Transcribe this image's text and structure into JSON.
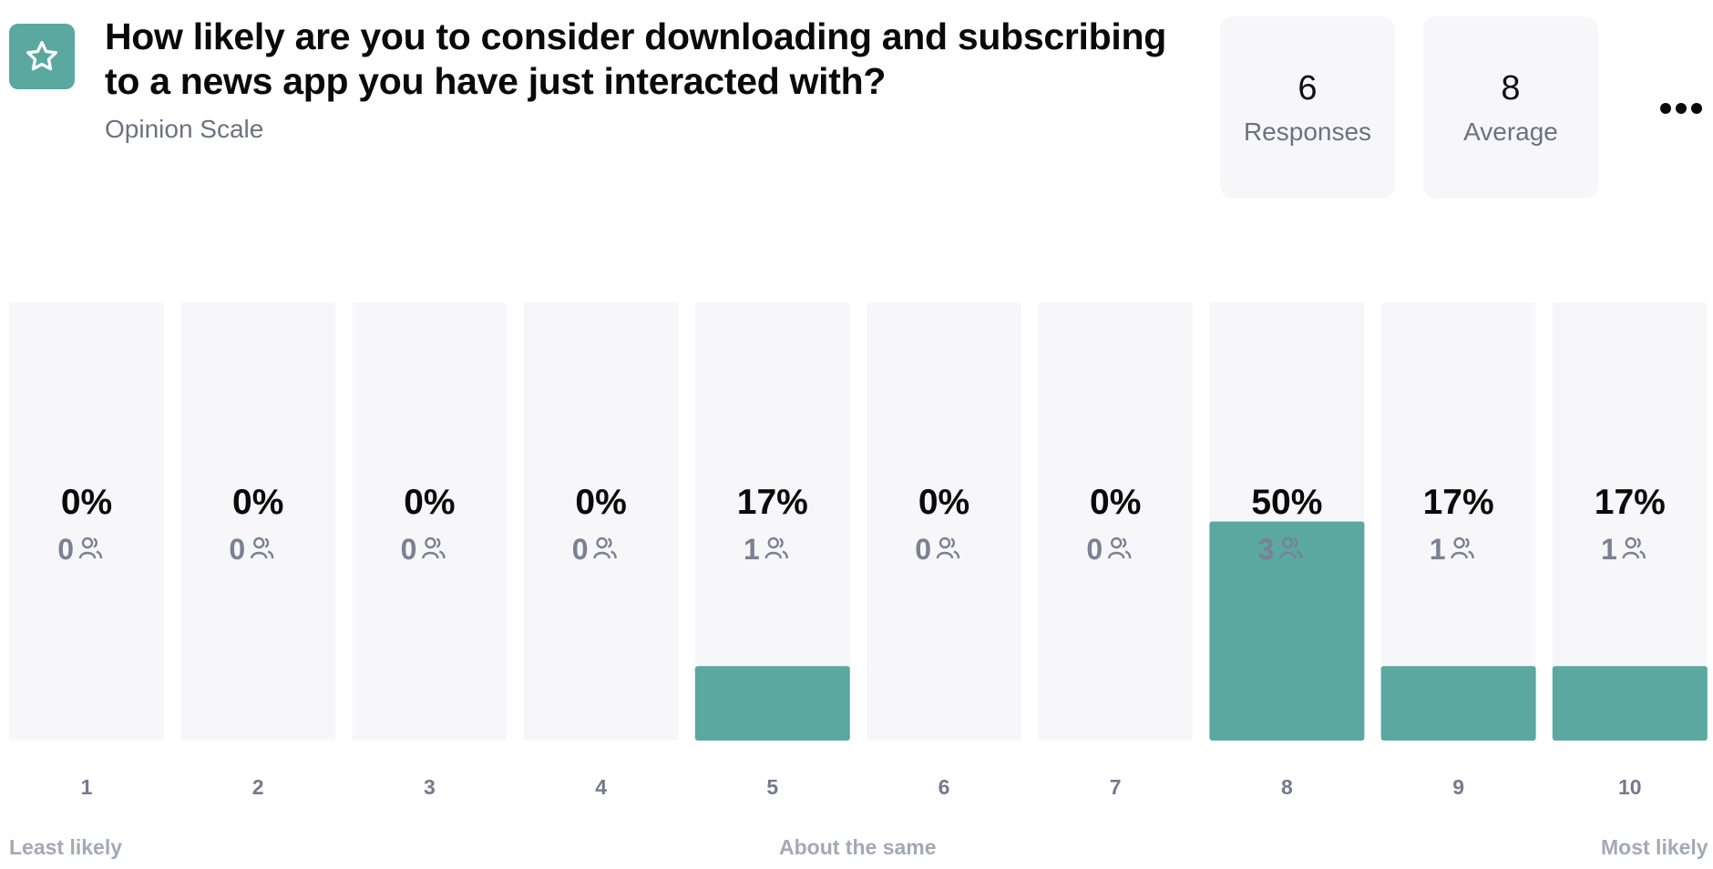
{
  "question": {
    "title": "How likely are you to consider downloading and subscribing to a news app you have just interacted with?",
    "type": "Opinion Scale",
    "icon": "star-icon",
    "accent_color": "#5aa8a0"
  },
  "stats": {
    "responses": {
      "value": "6",
      "label": "Responses"
    },
    "average": {
      "value": "8",
      "label": "Average"
    }
  },
  "menu_icon": "more-options-icon",
  "scale_labels": {
    "left": "Least likely",
    "middle": "About the same",
    "right": "Most likely"
  },
  "chart_data": {
    "type": "bar",
    "categories": [
      "1",
      "2",
      "3",
      "4",
      "5",
      "6",
      "7",
      "8",
      "9",
      "10"
    ],
    "values": [
      0,
      0,
      0,
      0,
      17,
      0,
      0,
      50,
      17,
      17
    ],
    "percent_labels": [
      "0%",
      "0%",
      "0%",
      "0%",
      "17%",
      "0%",
      "0%",
      "50%",
      "17%",
      "17%"
    ],
    "counts": [
      0,
      0,
      0,
      0,
      1,
      0,
      0,
      3,
      1,
      1
    ],
    "ylim": [
      0,
      100
    ],
    "bar_color": "#5aa8a0",
    "track_color": "#f7f7f9"
  }
}
